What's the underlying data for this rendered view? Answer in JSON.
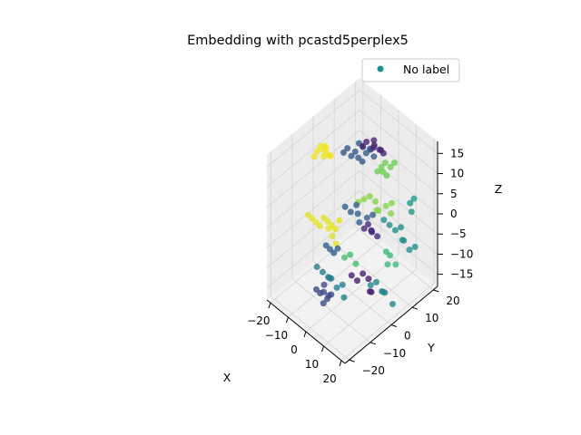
{
  "chart_data": {
    "type": "scatter",
    "projection": "3d",
    "title": "Embedding with pcastd5perplex5",
    "xlabel": "X",
    "ylabel": "Y",
    "zlabel": "Z",
    "xlim": [
      -22,
      22
    ],
    "ylim": [
      -22,
      22
    ],
    "zlim": [
      -18,
      18
    ],
    "x_ticks": [
      -20,
      -10,
      0,
      10,
      20
    ],
    "y_ticks": [
      -20,
      -10,
      0,
      10,
      20
    ],
    "z_ticks": [
      -15,
      -10,
      -5,
      0,
      5,
      10,
      15
    ],
    "grid": true,
    "legend": {
      "position": "top-right",
      "entries": [
        "No label"
      ]
    },
    "colormap": "viridis",
    "legend_color": "#21918c",
    "clusters": [
      {
        "x": [
          -19,
          -18.5,
          -18,
          -17.5,
          -17,
          -16.5,
          -16,
          -15.5,
          -15,
          -14.5
        ],
        "y": [
          -2,
          -1,
          0,
          1,
          2,
          3,
          1,
          0,
          -1,
          2
        ],
        "z": [
          10,
          11,
          12,
          11,
          10,
          9,
          12,
          13,
          11,
          10
        ],
        "c": 0.98
      },
      {
        "x": [
          -20,
          -19,
          -18,
          -17,
          -16,
          -15,
          -14,
          -13,
          -12,
          -11,
          -10,
          -9
        ],
        "y": [
          -4,
          -3,
          -2,
          -1,
          0,
          1,
          2,
          3,
          4,
          -2,
          -1,
          0
        ],
        "z": [
          -4,
          -5,
          -6,
          -7,
          -5,
          -6,
          -7,
          -8,
          -6,
          -5,
          -7,
          -9
        ],
        "c": 0.96
      },
      {
        "x": [
          -12,
          -11,
          -10,
          -9,
          -8,
          -7,
          -6,
          -5,
          -4,
          -3,
          -2
        ],
        "y": [
          6,
          7,
          8,
          9,
          10,
          11,
          8,
          9,
          10,
          11,
          12
        ],
        "z": [
          10,
          11,
          9,
          10,
          12,
          11,
          10,
          9,
          11,
          12,
          10
        ],
        "c": 0.28
      },
      {
        "x": [
          -6,
          -5,
          -4,
          -3,
          -2,
          -1,
          0,
          1,
          2
        ],
        "y": [
          10,
          11,
          12,
          13,
          12,
          11,
          13,
          14,
          12
        ],
        "z": [
          12,
          13,
          11,
          12,
          14,
          13,
          12,
          11,
          13
        ],
        "c": 0.1
      },
      {
        "x": [
          0,
          1,
          2,
          3,
          4,
          5,
          6
        ],
        "y": [
          12,
          13,
          14,
          12,
          13,
          14,
          15
        ],
        "z": [
          7,
          8,
          9,
          8,
          7,
          9,
          10
        ],
        "c": 0.78
      },
      {
        "x": [
          -6,
          -4,
          -2,
          0,
          2,
          4,
          6,
          8,
          10
        ],
        "y": [
          8,
          9,
          10,
          11,
          10,
          9,
          11,
          12,
          10
        ],
        "z": [
          -1,
          0,
          1,
          0,
          -1,
          0,
          1,
          2,
          1
        ],
        "c": 0.82
      },
      {
        "x": [
          -4,
          -2,
          0,
          2,
          4,
          6,
          8
        ],
        "y": [
          0,
          1,
          2,
          1,
          0,
          2,
          3
        ],
        "z": [
          2,
          1,
          3,
          2,
          1,
          2,
          3
        ],
        "c": 0.3
      },
      {
        "x": [
          2,
          3,
          4,
          5,
          6,
          7
        ],
        "y": [
          4,
          5,
          6,
          5,
          4,
          6
        ],
        "z": [
          -3,
          -2,
          -4,
          -3,
          -2,
          -4
        ],
        "c": 0.12
      },
      {
        "x": [
          -2,
          0,
          2
        ],
        "y": [
          -2,
          -1,
          0
        ],
        "z": [
          -9,
          -8,
          -10
        ],
        "c": 0.7
      },
      {
        "x": [
          -10,
          -9,
          -8,
          -7
        ],
        "y": [
          -4,
          -3,
          -2,
          -1
        ],
        "z": [
          -8,
          -9,
          -10,
          -9
        ],
        "c": 0.3
      },
      {
        "x": [
          6,
          8,
          10,
          12,
          14,
          16,
          18,
          20
        ],
        "y": [
          10,
          11,
          12,
          13,
          12,
          11,
          12,
          13
        ],
        "z": [
          -2,
          -3,
          -4,
          -3,
          -5,
          -4,
          -6,
          -5
        ],
        "c": 0.5
      },
      {
        "x": [
          16,
          17,
          18
        ],
        "y": [
          14,
          15,
          13
        ],
        "z": [
          4,
          5,
          3
        ],
        "c": 0.55
      },
      {
        "x": [
          12,
          13,
          14,
          15
        ],
        "y": [
          6,
          7,
          5,
          8
        ],
        "z": [
          -6,
          -7,
          -8,
          -9
        ],
        "c": 0.68
      },
      {
        "x": [
          2,
          4,
          6,
          8,
          10,
          12
        ],
        "y": [
          -2,
          -1,
          0,
          1,
          0,
          -1
        ],
        "z": [
          -12,
          -13,
          -11,
          -12,
          -14,
          -13
        ],
        "c": 0.08
      },
      {
        "x": [
          8,
          10,
          12,
          14,
          16,
          18
        ],
        "y": [
          2,
          3,
          4,
          3,
          2,
          4
        ],
        "z": [
          -14,
          -13,
          -15,
          -14,
          -13,
          -16
        ],
        "c": 0.46
      },
      {
        "x": [
          -8,
          -6,
          -4,
          -2,
          0,
          2,
          4,
          6
        ],
        "y": [
          -10,
          -9,
          -8,
          -9,
          -10,
          -9,
          -8,
          -9
        ],
        "z": [
          -10,
          -11,
          -12,
          -11,
          -10,
          -12,
          -11,
          -13
        ],
        "c": 0.42
      },
      {
        "x": [
          -6,
          -5,
          -4,
          -3,
          -2,
          -1,
          0,
          1
        ],
        "y": [
          -12,
          -11,
          -10,
          -11,
          -12,
          -11,
          -10,
          -12
        ],
        "z": [
          -14,
          -15,
          -13,
          -14,
          -16,
          -15,
          -14,
          -13
        ],
        "c": 0.22
      }
    ]
  }
}
